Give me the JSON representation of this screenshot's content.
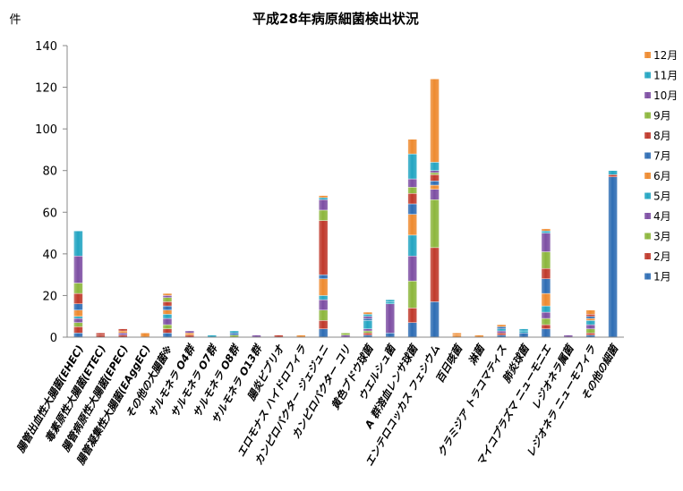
{
  "chart_data": {
    "type": "bar",
    "stacked": true,
    "title": "平成28年病原細菌検出状況",
    "ylabel": "件",
    "ylim": [
      0,
      140
    ],
    "yticks": [
      0,
      20,
      40,
      60,
      80,
      100,
      120,
      140
    ],
    "grid": false,
    "legend_position": "right",
    "categories": [
      "腸管出血性大腸菌(EHEC)",
      "毒素原性大腸菌(ETEC)",
      "腸管病原性大腸菌(EPEC)",
      "腸管凝集性大腸菌(EAggEC)",
      "その他の大腸菌※",
      "サルモネラ O4群",
      "サルモネラ O7群",
      "サルモネラ O8群",
      "サルモネラ O13群",
      "腸炎ビブリオ",
      "エロモナス ハイドロフィラ",
      "カンピロバクター ジェジュニ",
      "カンピロバクター コリ",
      "黄色ブドウ球菌",
      "ウエルシュ菌",
      "A 群溶血レンサ球菌",
      "エンテロコッカス フェシウム",
      "百日咳菌",
      "淋菌",
      "クラミジア トラコマティス",
      "肺炎球菌",
      "マイコプラズマ ニューモニエ",
      "レジオネラ属菌",
      "レジオネラ ニューモフィラ",
      "その他の細菌"
    ],
    "series": [
      {
        "name": "1月",
        "color": "#2e6db4",
        "values": [
          2,
          0,
          0,
          0,
          2,
          0,
          0,
          0,
          0,
          0,
          0,
          4,
          0,
          1,
          2,
          7,
          17,
          0,
          0,
          1,
          2,
          4,
          0,
          1,
          77
        ]
      },
      {
        "name": "2月",
        "color": "#c0392b",
        "values": [
          3,
          1,
          1,
          0,
          2,
          1,
          0,
          0,
          0,
          1,
          0,
          4,
          0,
          1,
          0,
          7,
          26,
          0,
          0,
          1,
          0,
          2,
          0,
          1,
          1
        ]
      },
      {
        "name": "3月",
        "color": "#8cb63c",
        "values": [
          2,
          0,
          0,
          0,
          2,
          0,
          0,
          1,
          0,
          0,
          0,
          5,
          0,
          1,
          0,
          13,
          23,
          0,
          0,
          0,
          0,
          3,
          0,
          2,
          0
        ]
      },
      {
        "name": "4月",
        "color": "#7d4ea3",
        "values": [
          2,
          0,
          1,
          0,
          3,
          0,
          0,
          0,
          1,
          0,
          0,
          5,
          1,
          1,
          14,
          12,
          5,
          0,
          0,
          1,
          0,
          3,
          1,
          2,
          0
        ]
      },
      {
        "name": "5月",
        "color": "#23a5c2",
        "values": [
          1,
          0,
          0,
          0,
          2,
          0,
          1,
          0,
          0,
          0,
          0,
          2,
          0,
          4,
          1,
          10,
          0,
          0,
          0,
          1,
          1,
          3,
          0,
          2,
          0
        ]
      },
      {
        "name": "6月",
        "color": "#ee8a2f",
        "values": [
          3,
          0,
          1,
          2,
          2,
          1,
          0,
          0,
          0,
          0,
          1,
          8,
          0,
          0,
          0,
          10,
          2,
          1,
          1,
          0,
          0,
          6,
          0,
          1,
          0
        ]
      },
      {
        "name": "7月",
        "color": "#2e6db4",
        "values": [
          3,
          0,
          0,
          0,
          2,
          0,
          0,
          1,
          0,
          0,
          0,
          2,
          0,
          1,
          0,
          5,
          2,
          0,
          0,
          1,
          0,
          7,
          0,
          1,
          0
        ]
      },
      {
        "name": "8月",
        "color": "#c0392b",
        "values": [
          5,
          1,
          1,
          0,
          2,
          0,
          0,
          0,
          0,
          0,
          0,
          26,
          0,
          0,
          0,
          5,
          3,
          0,
          0,
          0,
          0,
          5,
          0,
          1,
          0
        ]
      },
      {
        "name": "9月",
        "color": "#8cb63c",
        "values": [
          5,
          0,
          0,
          0,
          2,
          0,
          0,
          0,
          0,
          0,
          0,
          5,
          1,
          0,
          0,
          3,
          1,
          0,
          0,
          0,
          0,
          8,
          0,
          0,
          0
        ]
      },
      {
        "name": "10月",
        "color": "#7d4ea3",
        "values": [
          13,
          0,
          0,
          0,
          1,
          1,
          0,
          0,
          0,
          0,
          0,
          5,
          0,
          1,
          0,
          4,
          1,
          0,
          0,
          0,
          0,
          9,
          0,
          0,
          0
        ]
      },
      {
        "name": "11月",
        "color": "#23a5c2",
        "values": [
          12,
          0,
          0,
          0,
          0,
          0,
          0,
          1,
          0,
          0,
          0,
          1,
          0,
          1,
          1,
          12,
          4,
          0,
          0,
          0,
          1,
          1,
          0,
          0,
          2
        ]
      },
      {
        "name": "12月",
        "color": "#ee8a2f",
        "values": [
          0,
          0,
          0,
          0,
          1,
          0,
          0,
          0,
          0,
          0,
          0,
          1,
          0,
          1,
          0,
          7,
          40,
          1,
          0,
          1,
          0,
          1,
          0,
          2,
          0
        ]
      }
    ]
  }
}
